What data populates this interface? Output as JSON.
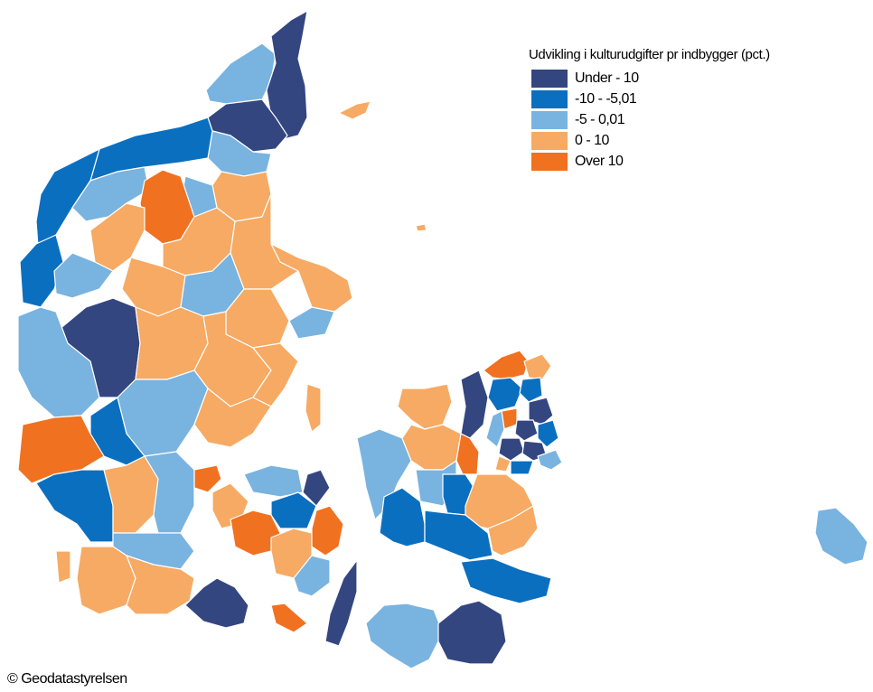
{
  "legend": {
    "title": "Udvikling i kulturudgifter pr indbygger (pct.)",
    "classes": [
      {
        "label": "Under - 10",
        "color": "#344680"
      },
      {
        "label": "-10 - -5,01",
        "color": "#0b6fc0"
      },
      {
        "label": "-5 - 0,01",
        "color": "#79b3e0"
      },
      {
        "label": "0 - 10",
        "color": "#f6aa63"
      },
      {
        "label": "Over 10",
        "color": "#f07120"
      }
    ]
  },
  "credit": "© Geodatastyrelsen"
}
